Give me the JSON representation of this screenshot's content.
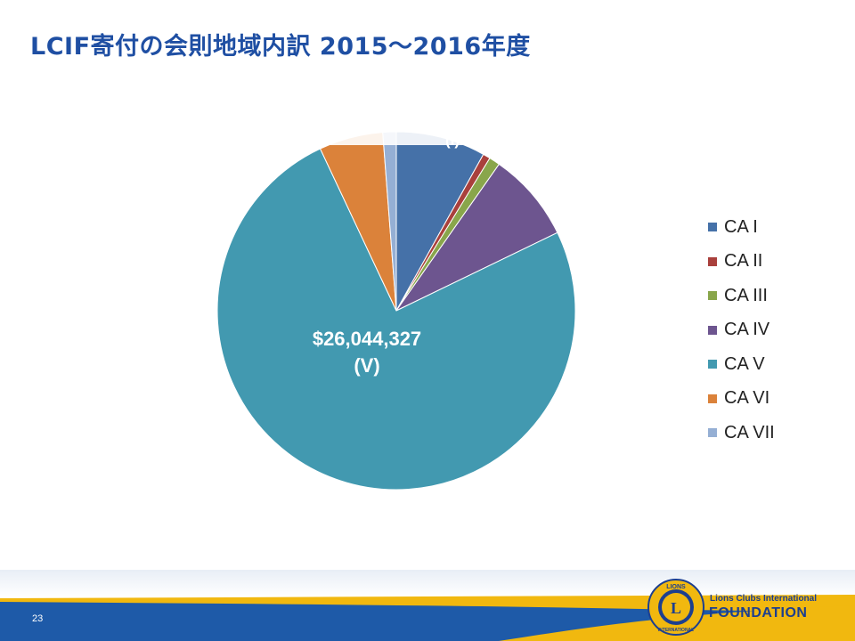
{
  "slide": {
    "title": "LCIF寄付の会則地域内訳  2015～2016年度",
    "page_number": "23"
  },
  "branding": {
    "foundation_line1": "Lions Clubs International",
    "foundation_line2": "FOUNDATION",
    "logo_text": "LIONS",
    "logo_sub": "INTERNATIONAL",
    "logo_letter": "L"
  },
  "chart_data": {
    "type": "pie",
    "title": "",
    "legend_position": "right",
    "slices": [
      {
        "label": "CA I",
        "value": 2800000,
        "color": "#4571a8"
      },
      {
        "label": "CA II",
        "value": 230000,
        "color": "#a9403c"
      },
      {
        "label": "CA III",
        "value": 340000,
        "color": "#89a64b"
      },
      {
        "label": "CA IV",
        "value": 2800000,
        "color": "#6d558f"
      },
      {
        "label": "CA V",
        "value": 26044327,
        "color": "#4299b0"
      },
      {
        "label": "CA VI",
        "value": 2000000,
        "color": "#db823a"
      },
      {
        "label": "CA VII",
        "value": 420000,
        "color": "#95afd4"
      }
    ],
    "data_labels": [
      {
        "slice": "CA V",
        "line1": "$26,044,327",
        "line2": "(V)"
      }
    ]
  }
}
